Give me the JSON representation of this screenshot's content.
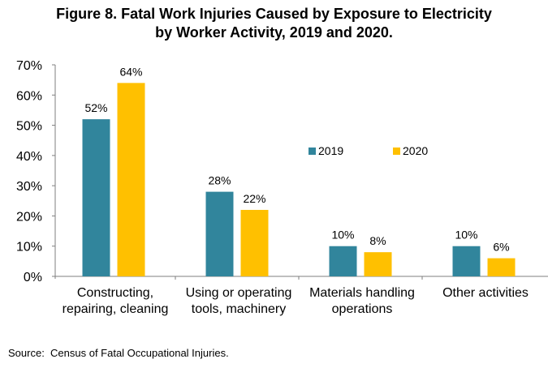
{
  "chart_data": {
    "type": "bar",
    "title_lines": [
      "Figure 8. Fatal Work Injuries Caused by Exposure to Electricity",
      "by Worker Activity, 2019 and 2020."
    ],
    "categories": [
      [
        "Constructing,",
        "repairing, cleaning"
      ],
      [
        "Using or operating",
        "tools, machinery"
      ],
      [
        "Materials handling",
        "operations"
      ],
      [
        "Other activities"
      ]
    ],
    "series": [
      {
        "name": "2019",
        "color": "#31859C",
        "values": [
          52,
          28,
          10,
          10
        ],
        "labels": [
          "52%",
          "28%",
          "10%",
          "10%"
        ]
      },
      {
        "name": "2020",
        "color": "#FFC000",
        "values": [
          64,
          22,
          8,
          6
        ],
        "labels": [
          "64%",
          "22%",
          "8%",
          "6%"
        ]
      }
    ],
    "y_ticks": [
      0,
      10,
      20,
      30,
      40,
      50,
      60,
      70
    ],
    "y_tick_labels": [
      "0%",
      "10%",
      "20%",
      "30%",
      "40%",
      "50%",
      "60%",
      "70%"
    ],
    "ylim": [
      0,
      70
    ],
    "legend_position": "right-middle",
    "grid": false
  },
  "source": "Source:  Census of Fatal Occupational Injuries."
}
